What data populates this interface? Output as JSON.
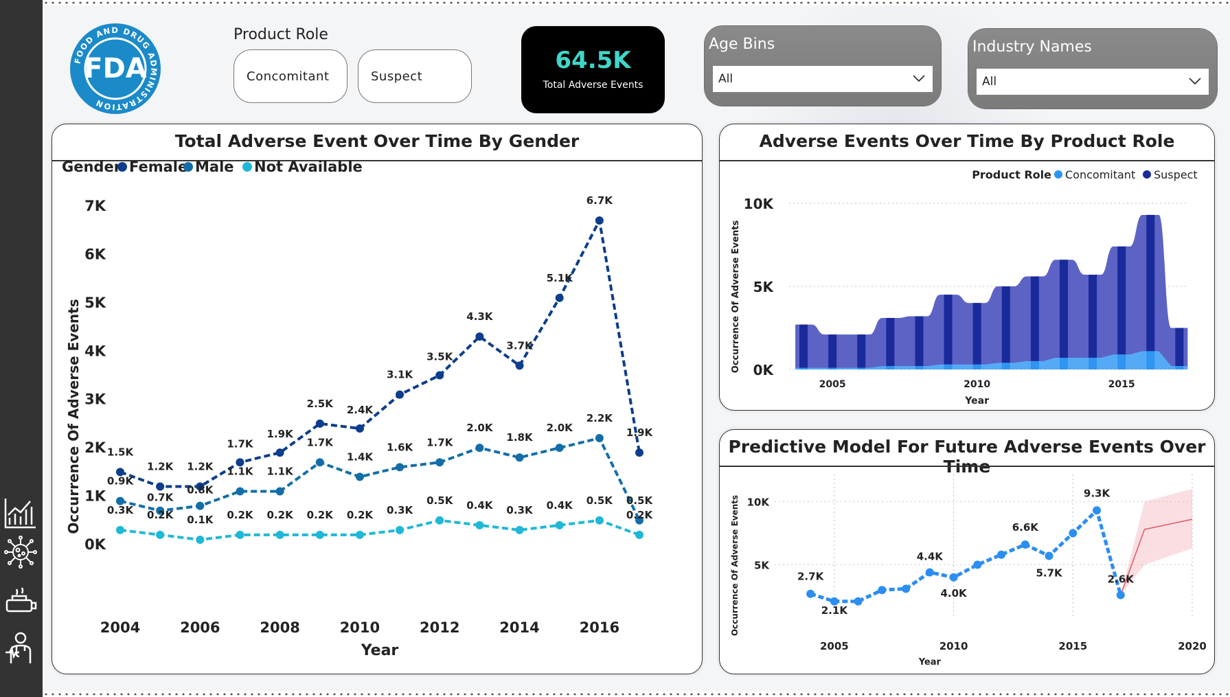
{
  "brand": {
    "logo_text": "FDA",
    "logo_ring_text": "FOOD AND DRUG ADMINISTRATION",
    "logo_color": "#1b8ac9"
  },
  "filters": {
    "product_role_label": "Product Role",
    "product_roles": [
      "Concomitant",
      "Suspect"
    ],
    "age_bins": {
      "label": "Age Bins",
      "value": "All"
    },
    "industry_names": {
      "label": "Industry Names",
      "value": "All"
    }
  },
  "kpi": {
    "value": "64.5K",
    "label": "Total Adverse Events",
    "value_color": "#40d6c8"
  },
  "sidebar": {
    "icons": [
      "chart-icon",
      "virus-icon",
      "medicine-icon",
      "doctor-icon"
    ]
  },
  "chart_data": [
    {
      "type": "line",
      "title": "Total Adverse Event Over Time By Gender",
      "legend_title": "Gender",
      "legend_position": "top-left",
      "xlabel": "Year",
      "ylabel": "Occurrence Of Adverse Events",
      "ylim": [
        0,
        7000
      ],
      "yticks": [
        "0K",
        "1K",
        "2K",
        "3K",
        "4K",
        "5K",
        "6K",
        "7K"
      ],
      "xticks": [
        "2004",
        "2006",
        "2008",
        "2010",
        "2012",
        "2014",
        "2016"
      ],
      "x": [
        2004,
        2005,
        2006,
        2007,
        2008,
        2009,
        2010,
        2011,
        2012,
        2013,
        2014,
        2015,
        2016,
        2017
      ],
      "series": [
        {
          "name": "Female",
          "color": "#0d3d8c",
          "values": [
            1500,
            1200,
            1200,
            1700,
            1900,
            2500,
            2400,
            3100,
            3500,
            4300,
            3700,
            5100,
            6700,
            1900
          ],
          "labels": [
            "1.5K",
            "1.2K",
            "1.2K",
            "1.7K",
            "1.9K",
            "2.5K",
            "2.4K",
            "3.1K",
            "3.5K",
            "4.3K",
            "3.7K",
            "5.1K",
            "6.7K",
            "1.9K"
          ]
        },
        {
          "name": "Male",
          "color": "#136ea8",
          "values": [
            900,
            700,
            800,
            1100,
            1100,
            1700,
            1400,
            1600,
            1700,
            2000,
            1800,
            2000,
            2200,
            500
          ],
          "labels": [
            "0.9K",
            "0.7K",
            "0.8K",
            "1.1K",
            "1.1K",
            "1.7K",
            "1.4K",
            "1.6K",
            "1.7K",
            "2.0K",
            "1.8K",
            "2.0K",
            "2.2K",
            "0.5K"
          ]
        },
        {
          "name": "Not Available",
          "color": "#1fb8d6",
          "values": [
            300,
            200,
            100,
            200,
            200,
            200,
            200,
            300,
            500,
            400,
            300,
            400,
            500,
            200
          ],
          "labels": [
            "0.3K",
            "0.2K",
            "0.1K",
            "0.2K",
            "0.2K",
            "0.2K",
            "0.2K",
            "0.3K",
            "0.5K",
            "0.4K",
            "0.3K",
            "0.4K",
            "0.5K",
            "0.2K"
          ]
        }
      ]
    },
    {
      "type": "area",
      "title": "Adverse Events Over Time By Product Role",
      "legend_title": "Product Role",
      "legend_position": "top-right",
      "xlabel": "Year",
      "ylabel": "Occurrence Of Adverse Events",
      "ylim": [
        0,
        10000
      ],
      "yticks": [
        "0K",
        "5K",
        "10K"
      ],
      "xticks": [
        "2005",
        "2010",
        "2015"
      ],
      "x": [
        2004,
        2005,
        2006,
        2007,
        2008,
        2009,
        2010,
        2011,
        2012,
        2013,
        2014,
        2015,
        2016,
        2017
      ],
      "series": [
        {
          "name": "Concomitant",
          "color": "#2e95f2",
          "values": [
            100,
            100,
            100,
            200,
            200,
            300,
            300,
            400,
            500,
            700,
            700,
            900,
            1100,
            200
          ]
        },
        {
          "name": "Suspect",
          "color": "#1a2a9a",
          "values": [
            2600,
            2000,
            2000,
            2900,
            3000,
            4200,
            3700,
            4600,
            5100,
            5900,
            5000,
            6500,
            8200,
            2300
          ]
        }
      ]
    },
    {
      "type": "line",
      "title": "Predictive Model For Future Adverse Events Over Time",
      "xlabel": "Year",
      "ylabel": "Occurrence Of Adverse Events",
      "ylim": [
        0,
        12000
      ],
      "yticks": [
        "5K",
        "10K"
      ],
      "xticks": [
        "2005",
        "2010",
        "2015",
        "2020"
      ],
      "series": [
        {
          "color": "#2b8ef0",
          "x": [
            2004,
            2005,
            2006,
            2007,
            2008,
            2009,
            2010,
            2011,
            2012,
            2013,
            2014,
            2015,
            2016,
            2017
          ],
          "values": [
            2700,
            2100,
            2100,
            3000,
            3100,
            4400,
            4000,
            5000,
            5800,
            6600,
            5700,
            7500,
            9300,
            2600
          ],
          "labels": [
            "2.7K",
            "2.1K",
            "",
            "",
            "",
            "4.4K",
            "4.0K",
            "",
            "",
            "6.6K",
            "5.7K",
            "",
            "9.3K",
            "2.6K"
          ]
        },
        {
          "color": "#e06070",
          "x": [
            2017,
            2018,
            2020
          ],
          "values": [
            2600,
            7800,
            8600
          ],
          "band_low": [
            2600,
            5000,
            6300
          ],
          "band_high": [
            2600,
            10000,
            11000
          ]
        }
      ]
    }
  ]
}
